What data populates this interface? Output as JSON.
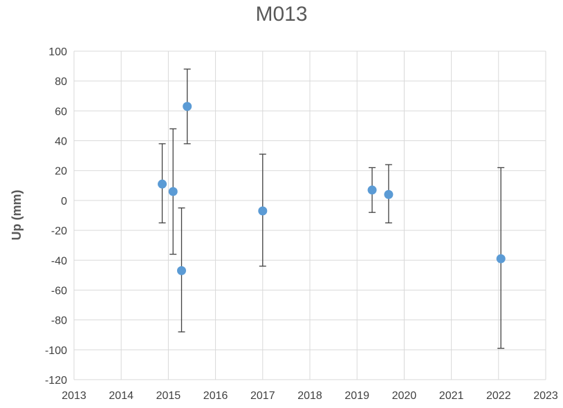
{
  "chart_data": {
    "type": "scatter",
    "title": "M013",
    "xlabel": "",
    "ylabel": "Up (mm)",
    "xlim": [
      2013,
      2023
    ],
    "ylim": [
      -120,
      100
    ],
    "xticks": [
      2013,
      2014,
      2015,
      2016,
      2017,
      2018,
      2019,
      2020,
      2021,
      2022,
      2023
    ],
    "yticks": [
      100,
      80,
      60,
      40,
      20,
      0,
      -20,
      -40,
      -60,
      -80,
      -100,
      -120
    ],
    "grid": true,
    "marker_color": "#5B9BD5",
    "errorbar_color": "#404040",
    "points": [
      {
        "x": 2014.87,
        "y": 11,
        "y_low": -15,
        "y_high": 38
      },
      {
        "x": 2015.1,
        "y": 6,
        "y_low": -36,
        "y_high": 48
      },
      {
        "x": 2015.4,
        "y": 63,
        "y_low": 38,
        "y_high": 88
      },
      {
        "x": 2015.28,
        "y": -47,
        "y_low": -88,
        "y_high": -5
      },
      {
        "x": 2017.0,
        "y": -7,
        "y_low": -44,
        "y_high": 31
      },
      {
        "x": 2019.32,
        "y": 7,
        "y_low": -8,
        "y_high": 22
      },
      {
        "x": 2019.67,
        "y": 4,
        "y_low": -15,
        "y_high": 24
      },
      {
        "x": 2022.05,
        "y": -39,
        "y_low": -99,
        "y_high": 22
      }
    ]
  }
}
